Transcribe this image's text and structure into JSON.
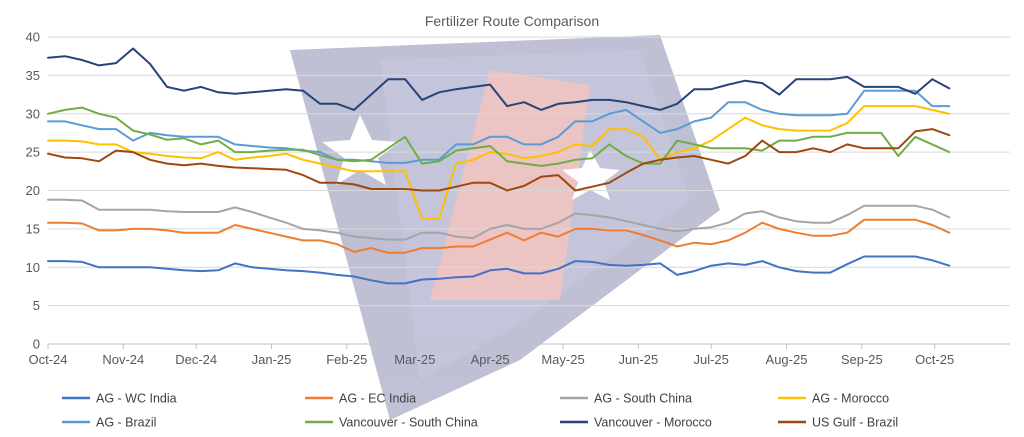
{
  "chart_data": {
    "type": "line",
    "title": "Fertilizer Route Comparison",
    "xlabel": "",
    "ylabel": "",
    "ylim": [
      0,
      40
    ],
    "yticks": [
      0,
      5,
      10,
      15,
      20,
      25,
      30,
      35,
      40
    ],
    "xlim": [
      "2024-10-01",
      "2025-11-01"
    ],
    "xtick_labels": [
      "Oct-24",
      "Nov-24",
      "Dec-24",
      "Jan-25",
      "Feb-25",
      "Mar-25",
      "Apr-25",
      "May-25",
      "Jun-25",
      "Jul-25",
      "Aug-25",
      "Sep-25",
      "Oct-25"
    ],
    "xtick_dates": [
      "2024-10-01",
      "2024-11-01",
      "2024-12-01",
      "2025-01-01",
      "2025-02-01",
      "2025-03-01",
      "2025-04-01",
      "2025-05-01",
      "2025-06-01",
      "2025-07-01",
      "2025-08-01",
      "2025-09-01",
      "2025-10-01"
    ],
    "grid": "horizontal",
    "legend_position": "bottom",
    "series": [
      {
        "name": "AG - WC India",
        "color": "#4472C4",
        "x": [
          "2024-10-01",
          "2024-10-08",
          "2024-10-15",
          "2024-10-22",
          "2024-10-29",
          "2024-11-05",
          "2024-11-12",
          "2024-11-19",
          "2024-11-26",
          "2024-12-03",
          "2024-12-10",
          "2024-12-17",
          "2024-12-24",
          "2024-12-31",
          "2025-01-07",
          "2025-01-14",
          "2025-01-21",
          "2025-01-28",
          "2025-02-04",
          "2025-02-11",
          "2025-02-18",
          "2025-02-25",
          "2025-03-04",
          "2025-03-11",
          "2025-03-18",
          "2025-03-25",
          "2025-04-01",
          "2025-04-08",
          "2025-04-15",
          "2025-04-22",
          "2025-04-29",
          "2025-05-06",
          "2025-05-13",
          "2025-05-20",
          "2025-05-27",
          "2025-06-03",
          "2025-06-10",
          "2025-06-17",
          "2025-06-24",
          "2025-07-01",
          "2025-07-08",
          "2025-07-15",
          "2025-07-22",
          "2025-07-29",
          "2025-08-05",
          "2025-08-12",
          "2025-08-19",
          "2025-08-26",
          "2025-09-02",
          "2025-09-09",
          "2025-09-16",
          "2025-09-23",
          "2025-09-30",
          "2025-10-07"
        ],
        "values": [
          10.8,
          10.8,
          10.7,
          10.0,
          10.0,
          10.0,
          10.0,
          9.8,
          9.6,
          9.5,
          9.6,
          10.5,
          10.0,
          9.8,
          9.6,
          9.5,
          9.3,
          9.0,
          8.8,
          8.3,
          7.9,
          7.9,
          8.4,
          8.5,
          8.7,
          8.8,
          9.6,
          9.8,
          9.2,
          9.2,
          9.8,
          10.8,
          10.7,
          10.3,
          10.2,
          10.3,
          10.5,
          9.0,
          9.5,
          10.2,
          10.5,
          10.3,
          10.8,
          10.0,
          9.5,
          9.3,
          9.3,
          10.4,
          11.4,
          11.4,
          11.4,
          11.4,
          10.9,
          10.2
        ]
      },
      {
        "name": "AG - EC India",
        "color": "#ED7D31",
        "x": [
          "2024-10-01",
          "2024-10-08",
          "2024-10-15",
          "2024-10-22",
          "2024-10-29",
          "2024-11-05",
          "2024-11-12",
          "2024-11-19",
          "2024-11-26",
          "2024-12-03",
          "2024-12-10",
          "2024-12-17",
          "2024-12-24",
          "2024-12-31",
          "2025-01-07",
          "2025-01-14",
          "2025-01-21",
          "2025-01-28",
          "2025-02-04",
          "2025-02-11",
          "2025-02-18",
          "2025-02-25",
          "2025-03-04",
          "2025-03-11",
          "2025-03-18",
          "2025-03-25",
          "2025-04-01",
          "2025-04-08",
          "2025-04-15",
          "2025-04-22",
          "2025-04-29",
          "2025-05-06",
          "2025-05-13",
          "2025-05-20",
          "2025-05-27",
          "2025-06-03",
          "2025-06-10",
          "2025-06-17",
          "2025-06-24",
          "2025-07-01",
          "2025-07-08",
          "2025-07-15",
          "2025-07-22",
          "2025-07-29",
          "2025-08-05",
          "2025-08-12",
          "2025-08-19",
          "2025-08-26",
          "2025-09-02",
          "2025-09-09",
          "2025-09-16",
          "2025-09-23",
          "2025-09-30",
          "2025-10-07"
        ],
        "values": [
          15.8,
          15.8,
          15.7,
          14.8,
          14.8,
          15.0,
          15.0,
          14.8,
          14.5,
          14.5,
          14.5,
          15.5,
          15.0,
          14.5,
          14.0,
          13.5,
          13.5,
          13.0,
          12.0,
          12.5,
          11.9,
          11.9,
          12.5,
          12.5,
          12.7,
          12.7,
          13.6,
          14.5,
          13.5,
          14.5,
          14.0,
          15.0,
          15.0,
          14.8,
          14.8,
          14.2,
          13.5,
          12.7,
          13.2,
          13.0,
          13.5,
          14.5,
          15.8,
          15.0,
          14.5,
          14.1,
          14.1,
          14.5,
          16.2,
          16.2,
          16.2,
          16.2,
          15.5,
          14.5
        ]
      },
      {
        "name": "AG - South China",
        "color": "#A5A5A5",
        "x": [
          "2024-10-01",
          "2024-10-08",
          "2024-10-15",
          "2024-10-22",
          "2024-10-29",
          "2024-11-05",
          "2024-11-12",
          "2024-11-19",
          "2024-11-26",
          "2024-12-03",
          "2024-12-10",
          "2024-12-17",
          "2024-12-24",
          "2024-12-31",
          "2025-01-07",
          "2025-01-14",
          "2025-01-21",
          "2025-01-28",
          "2025-02-04",
          "2025-02-11",
          "2025-02-18",
          "2025-02-25",
          "2025-03-04",
          "2025-03-11",
          "2025-03-18",
          "2025-03-25",
          "2025-04-01",
          "2025-04-08",
          "2025-04-15",
          "2025-04-22",
          "2025-04-29",
          "2025-05-06",
          "2025-05-13",
          "2025-05-20",
          "2025-05-27",
          "2025-06-03",
          "2025-06-10",
          "2025-06-17",
          "2025-06-24",
          "2025-07-01",
          "2025-07-08",
          "2025-07-15",
          "2025-07-22",
          "2025-07-29",
          "2025-08-05",
          "2025-08-12",
          "2025-08-19",
          "2025-08-26",
          "2025-09-02",
          "2025-09-09",
          "2025-09-16",
          "2025-09-23",
          "2025-09-30",
          "2025-10-07"
        ],
        "values": [
          18.8,
          18.8,
          18.7,
          17.5,
          17.5,
          17.5,
          17.5,
          17.3,
          17.2,
          17.2,
          17.2,
          17.8,
          17.2,
          16.5,
          15.8,
          15.0,
          14.8,
          14.5,
          14.0,
          13.8,
          13.6,
          13.6,
          14.5,
          14.5,
          14.0,
          13.8,
          15.0,
          15.5,
          15.0,
          15.0,
          15.8,
          17.0,
          16.8,
          16.5,
          16.0,
          15.5,
          15.0,
          14.7,
          15.0,
          15.2,
          15.8,
          17.0,
          17.3,
          16.5,
          16.0,
          15.8,
          15.8,
          16.8,
          18.0,
          18.0,
          18.0,
          18.0,
          17.5,
          16.5
        ]
      },
      {
        "name": "AG - Morocco",
        "color": "#FFC000",
        "x": [
          "2024-10-01",
          "2024-10-08",
          "2024-10-15",
          "2024-10-22",
          "2024-10-29",
          "2024-11-05",
          "2024-11-12",
          "2024-11-19",
          "2024-11-26",
          "2024-12-03",
          "2024-12-10",
          "2024-12-17",
          "2024-12-24",
          "2024-12-31",
          "2025-01-07",
          "2025-01-14",
          "2025-01-21",
          "2025-01-28",
          "2025-02-04",
          "2025-02-11",
          "2025-02-18",
          "2025-02-25",
          "2025-03-04",
          "2025-03-11",
          "2025-03-18",
          "2025-03-25",
          "2025-04-01",
          "2025-04-08",
          "2025-04-15",
          "2025-04-22",
          "2025-04-29",
          "2025-05-06",
          "2025-05-13",
          "2025-05-20",
          "2025-05-27",
          "2025-06-03",
          "2025-06-10",
          "2025-06-17",
          "2025-06-24",
          "2025-07-01",
          "2025-07-08",
          "2025-07-15",
          "2025-07-22",
          "2025-07-29",
          "2025-08-05",
          "2025-08-12",
          "2025-08-19",
          "2025-08-26",
          "2025-09-02",
          "2025-09-09",
          "2025-09-16",
          "2025-09-23",
          "2025-09-30",
          "2025-10-07"
        ],
        "values": [
          26.5,
          26.5,
          26.4,
          26.0,
          26.0,
          25.0,
          24.8,
          24.5,
          24.3,
          24.2,
          25.0,
          24.0,
          24.3,
          24.5,
          24.8,
          24.0,
          23.5,
          23.0,
          22.5,
          22.5,
          22.5,
          22.5,
          16.3,
          16.3,
          23.5,
          24.0,
          25.0,
          24.8,
          24.2,
          24.5,
          25.0,
          26.0,
          25.8,
          28.0,
          28.0,
          27.0,
          24.0,
          25.0,
          25.5,
          26.5,
          28.0,
          29.5,
          28.5,
          28.0,
          27.8,
          27.8,
          27.8,
          28.8,
          31.0,
          31.0,
          31.0,
          31.0,
          30.5,
          30.0
        ]
      },
      {
        "name": "AG - Brazil",
        "color": "#5B9BD5",
        "x": [
          "2024-10-01",
          "2024-10-08",
          "2024-10-15",
          "2024-10-22",
          "2024-10-29",
          "2024-11-05",
          "2024-11-12",
          "2024-11-19",
          "2024-11-26",
          "2024-12-03",
          "2024-12-10",
          "2024-12-17",
          "2024-12-24",
          "2024-12-31",
          "2025-01-07",
          "2025-01-14",
          "2025-01-21",
          "2025-01-28",
          "2025-02-04",
          "2025-02-11",
          "2025-02-18",
          "2025-02-25",
          "2025-03-04",
          "2025-03-11",
          "2025-03-18",
          "2025-03-25",
          "2025-04-01",
          "2025-04-08",
          "2025-04-15",
          "2025-04-22",
          "2025-04-29",
          "2025-05-06",
          "2025-05-13",
          "2025-05-20",
          "2025-05-27",
          "2025-06-03",
          "2025-06-10",
          "2025-06-17",
          "2025-06-24",
          "2025-07-01",
          "2025-07-08",
          "2025-07-15",
          "2025-07-22",
          "2025-07-29",
          "2025-08-05",
          "2025-08-12",
          "2025-08-19",
          "2025-08-26",
          "2025-09-02",
          "2025-09-09",
          "2025-09-16",
          "2025-09-23",
          "2025-09-30",
          "2025-10-07"
        ],
        "values": [
          29.0,
          29.0,
          28.5,
          28.0,
          28.0,
          26.5,
          27.5,
          27.2,
          27.0,
          27.0,
          27.0,
          26.0,
          25.8,
          25.6,
          25.5,
          25.2,
          25.0,
          24.0,
          24.0,
          23.8,
          23.6,
          23.6,
          24.0,
          24.0,
          26.0,
          26.0,
          27.0,
          27.0,
          26.0,
          26.0,
          27.0,
          29.0,
          29.0,
          30.0,
          30.5,
          29.0,
          27.5,
          28.0,
          29.0,
          29.5,
          31.5,
          31.5,
          30.5,
          30.0,
          29.8,
          29.8,
          29.8,
          30.0,
          33.0,
          33.0,
          33.0,
          33.0,
          31.0,
          31.0
        ]
      },
      {
        "name": "Vancouver - South China",
        "color": "#70AD47",
        "x": [
          "2024-10-01",
          "2024-10-08",
          "2024-10-15",
          "2024-10-22",
          "2024-10-29",
          "2024-11-05",
          "2024-11-12",
          "2024-11-19",
          "2024-11-26",
          "2024-12-03",
          "2024-12-10",
          "2024-12-17",
          "2024-12-24",
          "2024-12-31",
          "2025-01-07",
          "2025-01-14",
          "2025-01-21",
          "2025-01-28",
          "2025-02-04",
          "2025-02-11",
          "2025-02-18",
          "2025-02-25",
          "2025-03-04",
          "2025-03-11",
          "2025-03-18",
          "2025-03-25",
          "2025-04-01",
          "2025-04-08",
          "2025-04-15",
          "2025-04-22",
          "2025-04-29",
          "2025-05-06",
          "2025-05-13",
          "2025-05-20",
          "2025-05-27",
          "2025-06-03",
          "2025-06-10",
          "2025-06-17",
          "2025-06-24",
          "2025-07-01",
          "2025-07-08",
          "2025-07-15",
          "2025-07-22",
          "2025-07-29",
          "2025-08-05",
          "2025-08-12",
          "2025-08-19",
          "2025-08-26",
          "2025-09-02",
          "2025-09-09",
          "2025-09-16",
          "2025-09-23",
          "2025-09-30",
          "2025-10-07"
        ],
        "values": [
          30.0,
          30.5,
          30.8,
          30.0,
          29.5,
          27.8,
          27.3,
          26.6,
          26.8,
          26.0,
          26.5,
          25.0,
          25.0,
          25.2,
          25.3,
          25.3,
          24.6,
          24.0,
          23.8,
          24.0,
          25.5,
          27.0,
          23.5,
          23.8,
          25.2,
          25.5,
          25.8,
          23.8,
          23.5,
          23.2,
          23.5,
          24.0,
          24.2,
          26.0,
          24.5,
          23.5,
          23.5,
          26.5,
          26.0,
          25.5,
          25.5,
          25.5,
          25.2,
          26.5,
          26.5,
          27.0,
          27.0,
          27.5,
          27.5,
          27.5,
          24.5,
          27.0,
          26.0,
          25.0
        ]
      },
      {
        "name": "Vancouver - Morocco",
        "color": "#264478",
        "x": [
          "2024-10-01",
          "2024-10-08",
          "2024-10-15",
          "2024-10-22",
          "2024-10-29",
          "2024-11-05",
          "2024-11-12",
          "2024-11-19",
          "2024-11-26",
          "2024-12-03",
          "2024-12-10",
          "2024-12-17",
          "2024-12-24",
          "2024-12-31",
          "2025-01-07",
          "2025-01-14",
          "2025-01-21",
          "2025-01-28",
          "2025-02-04",
          "2025-02-11",
          "2025-02-18",
          "2025-02-25",
          "2025-03-04",
          "2025-03-11",
          "2025-03-18",
          "2025-03-25",
          "2025-04-01",
          "2025-04-08",
          "2025-04-15",
          "2025-04-22",
          "2025-04-29",
          "2025-05-06",
          "2025-05-13",
          "2025-05-20",
          "2025-05-27",
          "2025-06-03",
          "2025-06-10",
          "2025-06-17",
          "2025-06-24",
          "2025-07-01",
          "2025-07-08",
          "2025-07-15",
          "2025-07-22",
          "2025-07-29",
          "2025-08-05",
          "2025-08-12",
          "2025-08-19",
          "2025-08-26",
          "2025-09-02",
          "2025-09-09",
          "2025-09-16",
          "2025-09-23",
          "2025-09-30",
          "2025-10-07"
        ],
        "values": [
          37.3,
          37.5,
          37.0,
          36.3,
          36.6,
          38.5,
          36.5,
          33.5,
          33.0,
          33.5,
          32.8,
          32.6,
          32.8,
          33.0,
          33.2,
          33.0,
          31.3,
          31.3,
          30.5,
          32.5,
          34.5,
          34.5,
          31.8,
          32.8,
          33.2,
          33.5,
          33.8,
          31.0,
          31.5,
          30.5,
          31.3,
          31.5,
          31.8,
          31.8,
          31.5,
          31.0,
          30.5,
          31.3,
          33.2,
          33.2,
          33.8,
          34.3,
          34.0,
          32.5,
          34.5,
          34.5,
          34.5,
          34.8,
          33.5,
          33.5,
          33.5,
          32.6,
          34.5,
          33.3
        ]
      },
      {
        "name": "US Gulf - Brazil",
        "color": "#9E480E",
        "x": [
          "2024-10-01",
          "2024-10-08",
          "2024-10-15",
          "2024-10-22",
          "2024-10-29",
          "2024-11-05",
          "2024-11-12",
          "2024-11-19",
          "2024-11-26",
          "2024-12-03",
          "2024-12-10",
          "2024-12-17",
          "2024-12-24",
          "2024-12-31",
          "2025-01-07",
          "2025-01-14",
          "2025-01-21",
          "2025-01-28",
          "2025-02-04",
          "2025-02-11",
          "2025-02-18",
          "2025-02-25",
          "2025-03-04",
          "2025-03-11",
          "2025-03-18",
          "2025-03-25",
          "2025-04-01",
          "2025-04-08",
          "2025-04-15",
          "2025-04-22",
          "2025-04-29",
          "2025-05-06",
          "2025-05-13",
          "2025-05-20",
          "2025-05-27",
          "2025-06-03",
          "2025-06-10",
          "2025-06-17",
          "2025-06-24",
          "2025-07-01",
          "2025-07-08",
          "2025-07-15",
          "2025-07-22",
          "2025-07-29",
          "2025-08-05",
          "2025-08-12",
          "2025-08-19",
          "2025-08-26",
          "2025-09-02",
          "2025-09-09",
          "2025-09-16",
          "2025-09-23",
          "2025-09-30",
          "2025-10-07"
        ],
        "values": [
          24.8,
          24.3,
          24.2,
          23.8,
          25.2,
          25.0,
          24.0,
          23.5,
          23.3,
          23.5,
          23.2,
          23.0,
          22.9,
          22.8,
          22.7,
          22.0,
          21.0,
          21.0,
          20.8,
          20.2,
          20.2,
          20.2,
          20.0,
          20.0,
          20.5,
          21.0,
          21.0,
          20.0,
          20.6,
          21.8,
          22.0,
          20.0,
          20.5,
          21.0,
          22.3,
          23.5,
          24.0,
          24.3,
          24.5,
          24.0,
          23.5,
          24.5,
          26.5,
          25.0,
          25.0,
          25.5,
          25.0,
          26.0,
          25.5,
          25.5,
          25.5,
          27.7,
          28.0,
          27.2
        ]
      }
    ]
  }
}
